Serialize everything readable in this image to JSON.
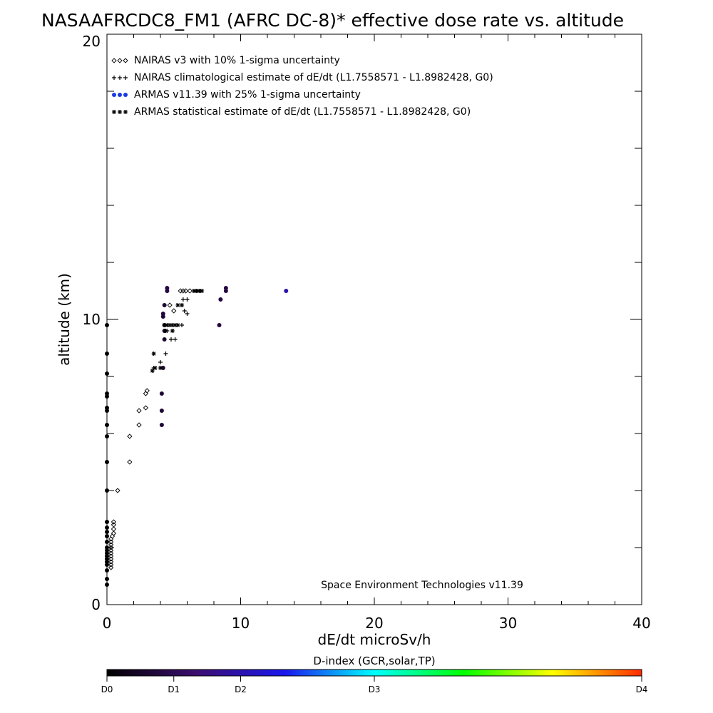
{
  "chart_data": {
    "type": "scatter",
    "title": "NASAAFRCDC8_FM1 (AFRC DC-8)* effective dose rate vs. altitude",
    "xlabel": "dE/dt microSv/h",
    "ylabel": "altitude (km)",
    "xlim": [
      0,
      40
    ],
    "ylim": [
      0,
      20
    ],
    "x_ticks": [
      "0",
      "10",
      "20",
      "30",
      "40"
    ],
    "y_ticks": [
      "0",
      "10",
      "20"
    ],
    "legend_position": "top-left",
    "legend": [
      {
        "label": "NAIRAS v3 with 10% 1-sigma uncertainty",
        "marker": "diamond",
        "color": "#000000"
      },
      {
        "label": "NAIRAS climatological estimate of dE/dt (L1.7558571 - L1.8982428, G0)",
        "marker": "plus",
        "color": "#000000"
      },
      {
        "label": "ARMAS v11.39 with 25% 1-sigma uncertainty",
        "marker": "dot",
        "color": "#1a3adf"
      },
      {
        "label": "ARMAS statistical estimate of dE/dt (L1.7558571 - L1.8982428, G0)",
        "marker": "asterisk",
        "color": "#000000"
      }
    ],
    "annotation": "Space Environment Technologies v11.39",
    "colorbar": {
      "title": "D-index (GCR,solar,TP)",
      "labels": [
        {
          "text": "D0",
          "value": 0
        },
        {
          "text": "D1",
          "value": 0.125
        },
        {
          "text": "D2",
          "value": 0.25
        },
        {
          "text": "D3",
          "value": 0.5
        },
        {
          "text": "D4",
          "value": 1
        }
      ],
      "stops": [
        "#000000",
        "#3c0e6e",
        "#1a16ee",
        "#00ffff",
        "#00ff00",
        "#ffff00",
        "#ff2a00"
      ]
    },
    "series": [
      {
        "name": "NAIRAS v3 with 10% 1-sigma uncertainty",
        "marker": "diamond",
        "points": [
          [
            0.5,
            2.9
          ],
          [
            0.5,
            2.8
          ],
          [
            0.5,
            2.65
          ],
          [
            0.5,
            2.5
          ],
          [
            0.4,
            2.4
          ],
          [
            0.3,
            2.3
          ],
          [
            0.3,
            2.2
          ],
          [
            0.3,
            2.1
          ],
          [
            0.3,
            2.0
          ],
          [
            0.3,
            1.9
          ],
          [
            0.3,
            1.8
          ],
          [
            0.3,
            1.7
          ],
          [
            0.3,
            1.6
          ],
          [
            0.3,
            1.5
          ],
          [
            0.3,
            1.4
          ],
          [
            0.3,
            1.3
          ],
          [
            0.8,
            4.0
          ],
          [
            1.7,
            5.0
          ],
          [
            1.7,
            5.9
          ],
          [
            2.4,
            6.3
          ],
          [
            2.4,
            6.8
          ],
          [
            2.9,
            6.9
          ],
          [
            2.9,
            7.4
          ],
          [
            3.0,
            7.5
          ],
          [
            4.7,
            10.5
          ],
          [
            5.0,
            10.3
          ],
          [
            5.5,
            11.0
          ],
          [
            5.7,
            11.0
          ],
          [
            5.9,
            11.0
          ],
          [
            6.2,
            11.0
          ]
        ]
      },
      {
        "name": "NAIRAS climatological estimate of dE/dt (L1.7558571 - L1.8982428, G0)",
        "marker": "plus",
        "points": [
          [
            3.5,
            8.3
          ],
          [
            4.0,
            8.5
          ],
          [
            4.4,
            8.8
          ],
          [
            4.5,
            9.6
          ],
          [
            4.8,
            9.3
          ],
          [
            5.1,
            9.3
          ],
          [
            5.7,
            10.7
          ],
          [
            6.0,
            10.7
          ],
          [
            5.8,
            10.3
          ],
          [
            6.0,
            10.2
          ],
          [
            5.6,
            9.8
          ],
          [
            6.6,
            11.0
          ],
          [
            6.8,
            11.0
          ],
          [
            7.0,
            11.0
          ]
        ]
      },
      {
        "name": "ARMAS v11.39 with 25% 1-sigma uncertainty",
        "marker": "dot",
        "points": [
          [
            0.0,
            9.8,
            0
          ],
          [
            0.0,
            8.8,
            0
          ],
          [
            0.0,
            8.1,
            0
          ],
          [
            0.0,
            7.4,
            0
          ],
          [
            0.0,
            7.3,
            0
          ],
          [
            0.0,
            6.9,
            0
          ],
          [
            0.0,
            6.8,
            0
          ],
          [
            0.0,
            6.3,
            0
          ],
          [
            0.0,
            5.9,
            0
          ],
          [
            0.0,
            5.0,
            0
          ],
          [
            0.0,
            4.0,
            0
          ],
          [
            0.0,
            2.9,
            0
          ],
          [
            0.0,
            2.7,
            0
          ],
          [
            0.0,
            2.55,
            0
          ],
          [
            0.0,
            2.4,
            0
          ],
          [
            0.0,
            2.2,
            0
          ],
          [
            0.0,
            2.0,
            0
          ],
          [
            0.0,
            1.9,
            0
          ],
          [
            0.0,
            1.8,
            0
          ],
          [
            0.0,
            1.7,
            0
          ],
          [
            0.0,
            1.6,
            0
          ],
          [
            0.0,
            1.5,
            0
          ],
          [
            0.0,
            1.4,
            0
          ],
          [
            0.0,
            1.2,
            0
          ],
          [
            0.0,
            0.9,
            0
          ],
          [
            0.0,
            0.7,
            0
          ],
          [
            4.1,
            6.3,
            0.08
          ],
          [
            4.1,
            6.8,
            0.08
          ],
          [
            4.1,
            7.4,
            0.08
          ],
          [
            4.2,
            8.3,
            0.08
          ],
          [
            4.3,
            9.3,
            0.08
          ],
          [
            4.3,
            9.6,
            0.08
          ],
          [
            4.3,
            9.8,
            0.08
          ],
          [
            4.2,
            10.1,
            0.08
          ],
          [
            4.2,
            10.2,
            0.08
          ],
          [
            4.3,
            10.5,
            0.08
          ],
          [
            4.5,
            11.0,
            0.1
          ],
          [
            4.5,
            11.1,
            0.1
          ],
          [
            8.4,
            9.8,
            0.1
          ],
          [
            8.5,
            10.7,
            0.1
          ],
          [
            8.9,
            11.0,
            0.1
          ],
          [
            8.9,
            11.1,
            0.1
          ],
          [
            13.4,
            11.0,
            0.25
          ]
        ]
      },
      {
        "name": "ARMAS statistical estimate of dE/dt (L1.7558571 - L1.8982428, G0)",
        "marker": "asterisk",
        "points": [
          [
            3.5,
            8.8
          ],
          [
            3.4,
            8.2
          ],
          [
            3.6,
            8.3
          ],
          [
            4.0,
            8.3
          ],
          [
            4.3,
            9.8
          ],
          [
            4.5,
            9.8
          ],
          [
            4.7,
            9.8
          ],
          [
            4.9,
            9.8
          ],
          [
            5.1,
            9.8
          ],
          [
            5.3,
            9.8
          ],
          [
            4.4,
            9.6
          ],
          [
            4.9,
            9.6
          ],
          [
            5.3,
            10.5
          ],
          [
            5.6,
            10.5
          ],
          [
            6.5,
            11.0
          ],
          [
            6.7,
            11.0
          ],
          [
            6.9,
            11.0
          ],
          [
            7.1,
            11.0
          ]
        ]
      }
    ]
  }
}
